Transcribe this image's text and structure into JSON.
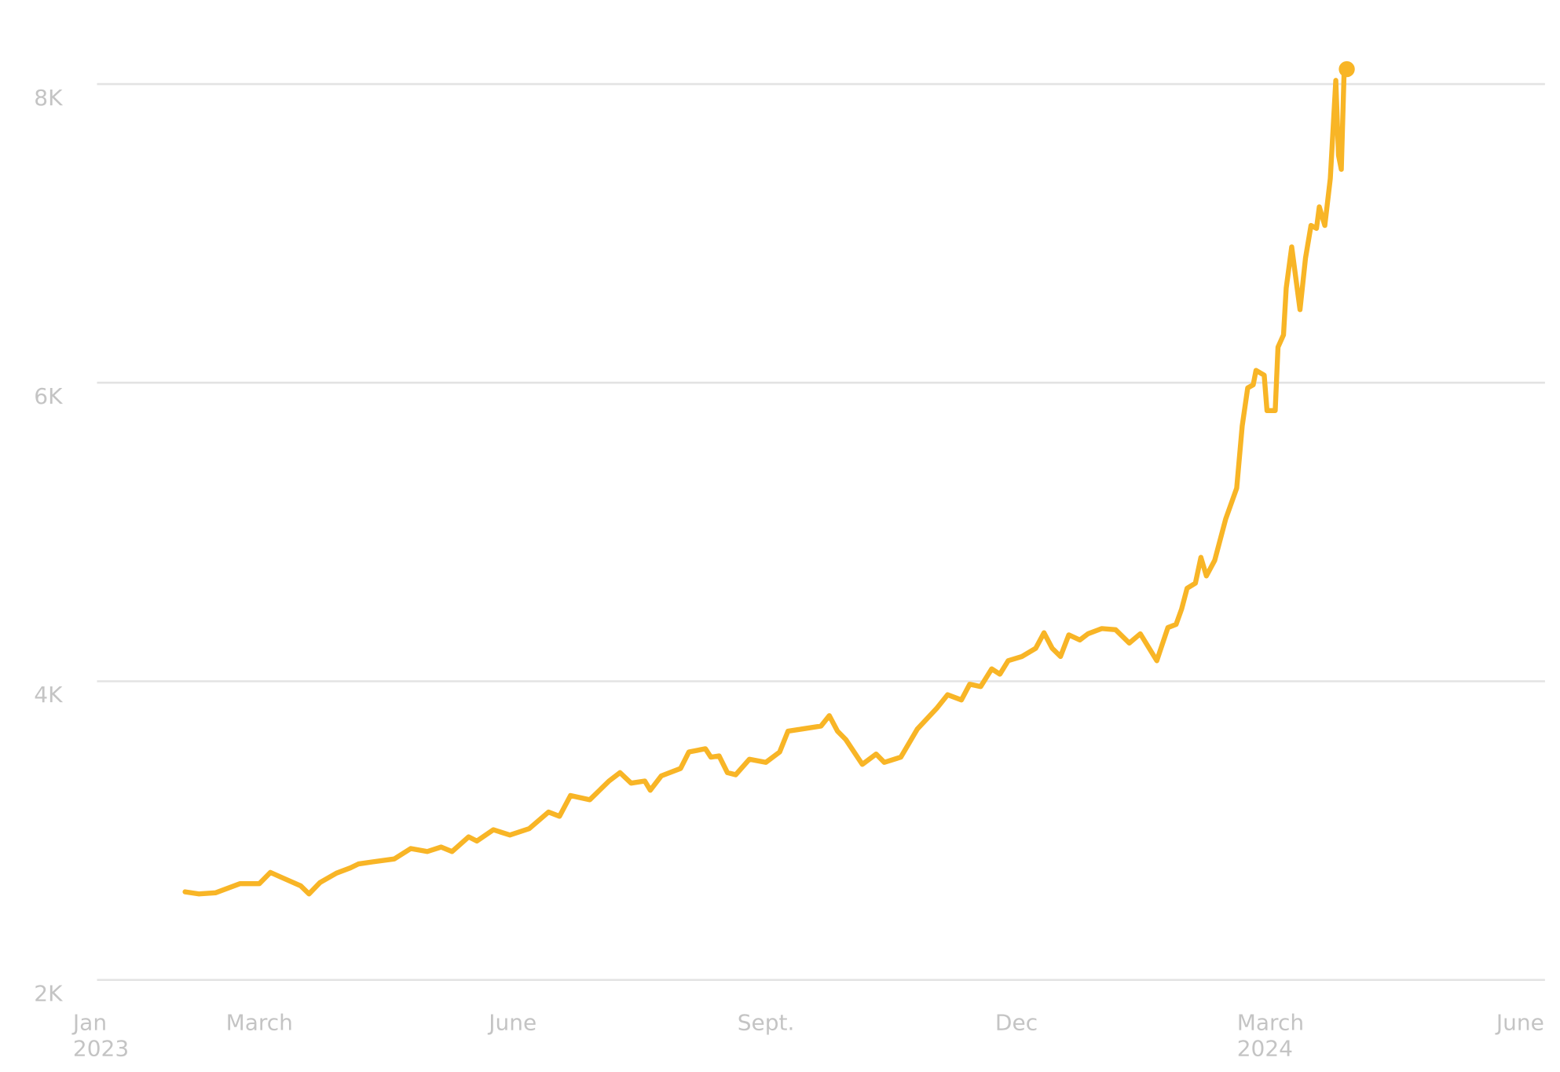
{
  "chart_data": {
    "type": "line",
    "color": "#f8b526",
    "grid": true,
    "ylim": [
      2000,
      8000
    ],
    "yticks": [
      {
        "value": 2000,
        "label": "2K"
      },
      {
        "value": 4000,
        "label": "4K"
      },
      {
        "value": 6000,
        "label": "6K"
      },
      {
        "value": 8000,
        "label": "8K"
      }
    ],
    "xlim": [
      "2023-01-01",
      "2024-06-10"
    ],
    "xticks": [
      {
        "value": "2023-01-01",
        "label": "Jan",
        "sublabel": "2023"
      },
      {
        "value": "2023-03-01",
        "label": "March"
      },
      {
        "value": "2023-06-01",
        "label": "June"
      },
      {
        "value": "2023-09-01",
        "label": "Sept."
      },
      {
        "value": "2023-12-01",
        "label": "Dec"
      },
      {
        "value": "2024-03-01",
        "label": "March",
        "sublabel": "2024"
      },
      {
        "value": "2024-06-01",
        "label": "June"
      }
    ],
    "x": [
      "2023-02-02",
      "2023-02-07",
      "2023-02-13",
      "2023-02-22",
      "2023-03-01",
      "2023-03-05",
      "2023-03-09",
      "2023-03-16",
      "2023-03-19",
      "2023-03-23",
      "2023-03-29",
      "2023-04-03",
      "2023-04-06",
      "2023-04-11",
      "2023-04-19",
      "2023-04-25",
      "2023-05-01",
      "2023-05-06",
      "2023-05-10",
      "2023-05-16",
      "2023-05-19",
      "2023-05-25",
      "2023-05-31",
      "2023-06-07",
      "2023-06-14",
      "2023-06-18",
      "2023-06-22",
      "2023-06-29",
      "2023-07-06",
      "2023-07-10",
      "2023-07-14",
      "2023-07-19",
      "2023-07-21",
      "2023-07-25",
      "2023-08-01",
      "2023-08-04",
      "2023-08-10",
      "2023-08-12",
      "2023-08-15",
      "2023-08-18",
      "2023-08-21",
      "2023-08-26",
      "2023-09-01",
      "2023-09-06",
      "2023-09-09",
      "2023-09-14",
      "2023-09-21",
      "2023-09-24",
      "2023-09-27",
      "2023-09-30",
      "2023-10-06",
      "2023-10-11",
      "2023-10-14",
      "2023-10-20",
      "2023-10-26",
      "2023-11-02",
      "2023-11-06",
      "2023-11-11",
      "2023-11-14",
      "2023-11-18",
      "2023-11-22",
      "2023-11-25",
      "2023-11-28",
      "2023-12-03",
      "2023-12-08",
      "2023-12-11",
      "2023-12-14",
      "2023-12-17",
      "2023-12-20",
      "2023-12-24",
      "2023-12-27",
      "2024-01-01",
      "2024-01-06",
      "2024-01-11",
      "2024-01-15",
      "2024-01-21",
      "2024-01-25",
      "2024-01-28",
      "2024-01-30",
      "2024-02-01",
      "2024-02-04",
      "2024-02-06",
      "2024-02-08",
      "2024-02-11",
      "2024-02-15",
      "2024-02-19",
      "2024-02-21",
      "2024-02-23",
      "2024-02-25",
      "2024-02-26",
      "2024-02-29",
      "2024-03-01",
      "2024-03-04",
      "2024-03-05",
      "2024-03-07",
      "2024-03-08",
      "2024-03-10",
      "2024-03-13",
      "2024-03-15",
      "2024-03-17",
      "2024-03-19",
      "2024-03-20",
      "2024-03-22",
      "2024-03-24",
      "2024-03-26",
      "2024-03-27",
      "2024-03-28",
      "2024-03-29",
      "2024-03-30"
    ],
    "values": [
      2590,
      2576,
      2583,
      2645,
      2645,
      2720,
      2687,
      2630,
      2576,
      2652,
      2715,
      2750,
      2777,
      2790,
      2810,
      2880,
      2860,
      2890,
      2860,
      2958,
      2930,
      3006,
      2970,
      3013,
      3124,
      3096,
      3235,
      3207,
      3332,
      3388,
      3318,
      3332,
      3270,
      3367,
      3416,
      3527,
      3548,
      3492,
      3500,
      3388,
      3374,
      3478,
      3457,
      3527,
      3666,
      3680,
      3700,
      3770,
      3666,
      3610,
      3444,
      3513,
      3457,
      3492,
      3680,
      3818,
      3910,
      3875,
      3980,
      3965,
      4083,
      4048,
      4138,
      4166,
      4221,
      4325,
      4221,
      4166,
      4311,
      4277,
      4318,
      4353,
      4346,
      4256,
      4318,
      4138,
      4360,
      4381,
      4484,
      4623,
      4657,
      4830,
      4706,
      4810,
      5087,
      5294,
      5710,
      5965,
      5986,
      6082,
      6050,
      5813,
      5813,
      6238,
      6320,
      6633,
      6909,
      6489,
      6834,
      7053,
      7034,
      7178,
      7053,
      7367,
      8025,
      7523,
      7429,
      8056,
      8100
    ]
  }
}
